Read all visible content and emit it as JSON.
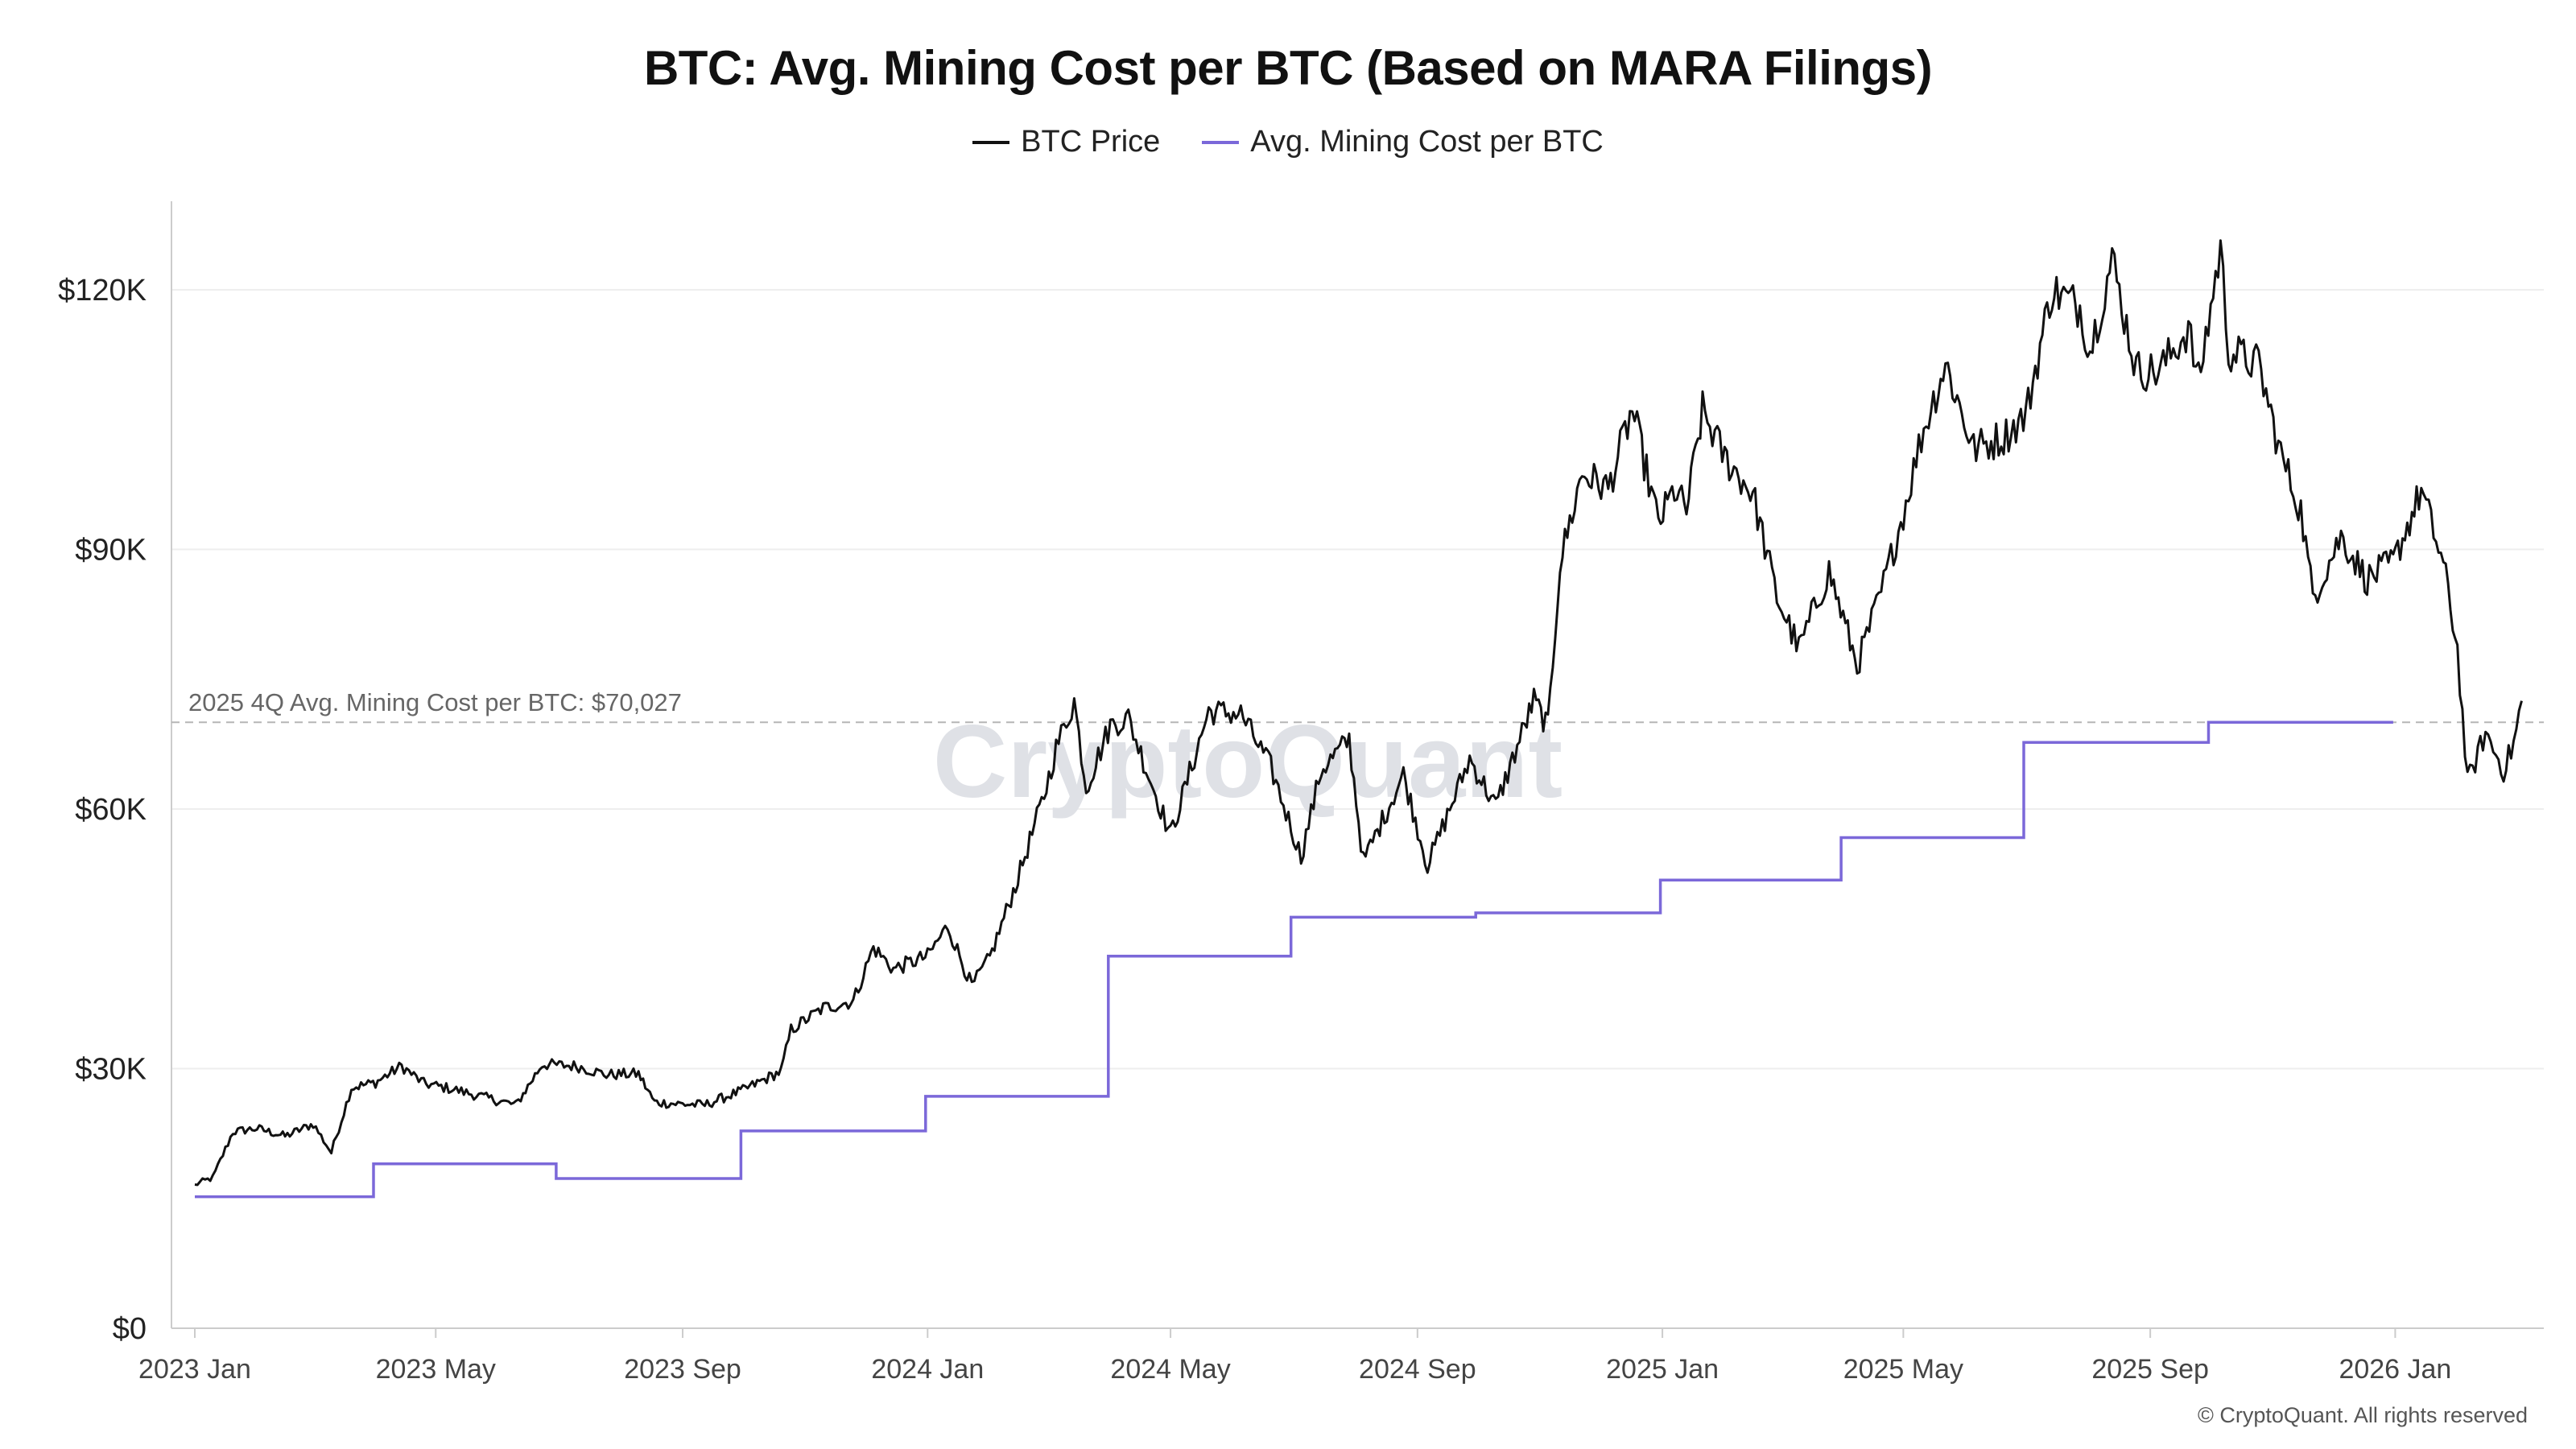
{
  "chart_data": {
    "type": "line",
    "title": "BTC: Avg. Mining Cost per BTC (Based on MARA Filings)",
    "xlabel": "",
    "ylabel": "",
    "ylim": [
      0,
      132000
    ],
    "y_ticks": [
      0,
      30000,
      60000,
      90000,
      120000
    ],
    "y_tick_labels": [
      "$0",
      "$30K",
      "$60K",
      "$90K",
      "$120K"
    ],
    "x_ticks": [
      "2023-01-01",
      "2023-05-01",
      "2023-09-01",
      "2024-01-01",
      "2024-05-01",
      "2024-09-01",
      "2025-01-01",
      "2025-05-01",
      "2025-09-01",
      "2026-01-01"
    ],
    "x_tick_labels": [
      "2023 Jan",
      "2023 May",
      "2023 Sep",
      "2024 Jan",
      "2024 May",
      "2024 Sep",
      "2025 Jan",
      "2025 May",
      "2025 Sep",
      "2026 Jan"
    ],
    "xlim": [
      "2023-01-01",
      "2026-03-08"
    ],
    "grid": true,
    "legend_position": "top-center",
    "series": [
      {
        "name": "BTC Price",
        "color": "#111111",
        "points": [
          [
            "2023-01-01",
            16600
          ],
          [
            "2023-01-10",
            17400
          ],
          [
            "2023-01-20",
            22700
          ],
          [
            "2023-02-01",
            23100
          ],
          [
            "2023-02-15",
            22200
          ],
          [
            "2023-03-01",
            23600
          ],
          [
            "2023-03-10",
            20300
          ],
          [
            "2023-03-20",
            27800
          ],
          [
            "2023-04-01",
            28400
          ],
          [
            "2023-04-14",
            30300
          ],
          [
            "2023-04-25",
            28300
          ],
          [
            "2023-05-10",
            27600
          ],
          [
            "2023-05-25",
            26700
          ],
          [
            "2023-06-10",
            25800
          ],
          [
            "2023-06-23",
            30500
          ],
          [
            "2023-07-10",
            30300
          ],
          [
            "2023-07-25",
            29300
          ],
          [
            "2023-08-10",
            29400
          ],
          [
            "2023-08-18",
            26100
          ],
          [
            "2023-09-01",
            25900
          ],
          [
            "2023-09-12",
            25800
          ],
          [
            "2023-10-01",
            27500
          ],
          [
            "2023-10-20",
            29700
          ],
          [
            "2023-10-25",
            34500
          ],
          [
            "2023-11-10",
            37000
          ],
          [
            "2023-11-25",
            37800
          ],
          [
            "2023-12-05",
            44000
          ],
          [
            "2023-12-15",
            41500
          ],
          [
            "2024-01-01",
            43000
          ],
          [
            "2024-01-11",
            46500
          ],
          [
            "2024-01-23",
            39500
          ],
          [
            "2024-02-01",
            42800
          ],
          [
            "2024-02-15",
            52000
          ],
          [
            "2024-02-28",
            61500
          ],
          [
            "2024-03-05",
            67000
          ],
          [
            "2024-03-14",
            72500
          ],
          [
            "2024-03-20",
            62500
          ],
          [
            "2024-04-01",
            69700
          ],
          [
            "2024-04-10",
            70500
          ],
          [
            "2024-04-20",
            64000
          ],
          [
            "2024-05-01",
            57000
          ],
          [
            "2024-05-20",
            71300
          ],
          [
            "2024-06-05",
            71000
          ],
          [
            "2024-06-20",
            64800
          ],
          [
            "2024-07-05",
            54500
          ],
          [
            "2024-07-15",
            64500
          ],
          [
            "2024-07-29",
            68000
          ],
          [
            "2024-08-05",
            53900
          ],
          [
            "2024-08-25",
            64000
          ],
          [
            "2024-09-06",
            53500
          ],
          [
            "2024-09-27",
            65800
          ],
          [
            "2024-10-10",
            60300
          ],
          [
            "2024-10-29",
            72600
          ],
          [
            "2024-11-05",
            69400
          ],
          [
            "2024-11-11",
            88500
          ],
          [
            "2024-11-22",
            98800
          ],
          [
            "2024-12-05",
            97000
          ],
          [
            "2024-12-17",
            106100
          ],
          [
            "2024-12-30",
            93000
          ],
          [
            "2025-01-07",
            96900
          ],
          [
            "2025-01-13",
            94500
          ],
          [
            "2025-01-21",
            106000
          ],
          [
            "2025-02-01",
            100600
          ],
          [
            "2025-02-15",
            96500
          ],
          [
            "2025-02-27",
            84500
          ],
          [
            "2025-03-10",
            78500
          ],
          [
            "2025-03-25",
            87500
          ],
          [
            "2025-04-08",
            76600
          ],
          [
            "2025-04-20",
            85000
          ],
          [
            "2025-05-01",
            94200
          ],
          [
            "2025-05-10",
            103000
          ],
          [
            "2025-05-22",
            111500
          ],
          [
            "2025-06-05",
            101600
          ],
          [
            "2025-06-20",
            103000
          ],
          [
            "2025-07-01",
            105500
          ],
          [
            "2025-07-14",
            120000
          ],
          [
            "2025-07-28",
            118000
          ],
          [
            "2025-08-02",
            113000
          ],
          [
            "2025-08-13",
            123500
          ],
          [
            "2025-08-25",
            110800
          ],
          [
            "2025-09-05",
            110500
          ],
          [
            "2025-09-20",
            115500
          ],
          [
            "2025-09-25",
            109300
          ],
          [
            "2025-10-06",
            124800
          ],
          [
            "2025-10-10",
            113000
          ],
          [
            "2025-10-25",
            111300
          ],
          [
            "2025-11-05",
            101000
          ],
          [
            "2025-11-15",
            94500
          ],
          [
            "2025-11-21",
            84500
          ],
          [
            "2025-12-05",
            91500
          ],
          [
            "2025-12-18",
            86500
          ],
          [
            "2025-12-31",
            88500
          ],
          [
            "2026-01-14",
            96800
          ],
          [
            "2026-01-25",
            88200
          ],
          [
            "2026-02-01",
            78500
          ],
          [
            "2026-02-06",
            63000
          ],
          [
            "2026-02-15",
            68800
          ],
          [
            "2026-02-24",
            64500
          ],
          [
            "2026-03-01",
            67500
          ],
          [
            "2026-03-05",
            72500
          ]
        ]
      },
      {
        "name": "Avg. Mining Cost per BTC",
        "color": "#7b68d9",
        "step": true,
        "points": [
          [
            "2023-01-01",
            15200
          ],
          [
            "2023-03-31",
            19000
          ],
          [
            "2023-06-30",
            17300
          ],
          [
            "2023-09-30",
            22800
          ],
          [
            "2023-12-31",
            26800
          ],
          [
            "2024-03-31",
            43000
          ],
          [
            "2024-06-30",
            47500
          ],
          [
            "2024-09-30",
            48000
          ],
          [
            "2024-12-31",
            51800
          ],
          [
            "2025-03-31",
            56700
          ],
          [
            "2025-06-30",
            67700
          ],
          [
            "2025-09-30",
            70027
          ],
          [
            "2025-12-31",
            70027
          ]
        ]
      }
    ],
    "reference_line": {
      "value": 70027,
      "label": "2025 4Q Avg. Mining Cost per BTC: $70,027"
    }
  },
  "watermark": "CryptoQuant",
  "copyright": "© CryptoQuant. All rights reserved"
}
